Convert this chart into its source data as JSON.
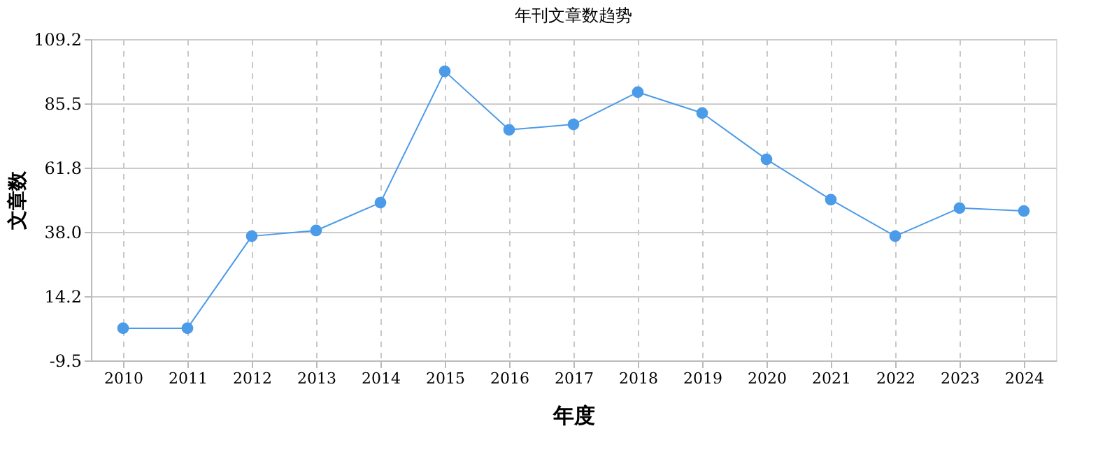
{
  "chart_data": {
    "type": "line",
    "title": "年刊文章数趋势",
    "xlabel": "年度",
    "ylabel": "文章数",
    "categories": [
      "2010",
      "2011",
      "2012",
      "2013",
      "2014",
      "2015",
      "2016",
      "2017",
      "2018",
      "2019",
      "2020",
      "2021",
      "2022",
      "2023",
      "2024"
    ],
    "series": [
      {
        "color": "#4c9be8",
        "values": [
          2.4,
          2.4,
          36.4,
          38.5,
          48.8,
          97.3,
          75.7,
          77.7,
          89.6,
          81.9,
          64.8,
          49.9,
          36.4,
          46.8,
          45.7
        ]
      }
    ],
    "ylim": [
      -9.5,
      109.2
    ],
    "yticks": [
      -9.5,
      14.2,
      {
        "value": 38,
        "label": "38.0"
      },
      61.8,
      85.5,
      109.2
    ],
    "grid": true,
    "marker": "circle",
    "line_style": "solid"
  }
}
